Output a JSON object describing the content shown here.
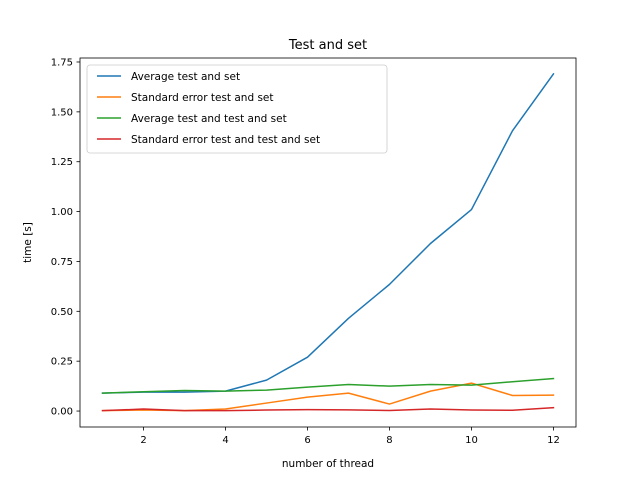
{
  "chart_data": {
    "type": "line",
    "title": "Test and set",
    "xlabel": "number of thread",
    "ylabel": "time [s]",
    "x": [
      1,
      2,
      3,
      4,
      5,
      6,
      7,
      8,
      9,
      10,
      11,
      12
    ],
    "xlim": [
      0.45,
      12.55
    ],
    "ylim": [
      -0.08,
      1.77
    ],
    "xticks": [
      2,
      4,
      6,
      8,
      10,
      12
    ],
    "yticks": [
      0.0,
      0.25,
      0.5,
      0.75,
      1.0,
      1.25,
      1.5,
      1.75
    ],
    "xtick_labels": [
      "2",
      "4",
      "6",
      "8",
      "10",
      "12"
    ],
    "ytick_labels": [
      "0.00",
      "0.25",
      "0.50",
      "0.75",
      "1.00",
      "1.25",
      "1.50",
      "1.75"
    ],
    "grid": false,
    "legend_position": "top-left",
    "series": [
      {
        "name": "Average test and set",
        "color": "#1f77b4",
        "values": [
          0.09,
          0.095,
          0.095,
          0.1,
          0.155,
          0.27,
          0.465,
          0.635,
          0.84,
          1.01,
          1.405,
          1.69
        ]
      },
      {
        "name": "Standard error test and set",
        "color": "#ff7f0e",
        "values": [
          0.002,
          0.005,
          0.002,
          0.01,
          0.04,
          0.07,
          0.09,
          0.035,
          0.1,
          0.14,
          0.078,
          0.08
        ]
      },
      {
        "name": "Average test and test and set",
        "color": "#2ca02c",
        "values": [
          0.09,
          0.097,
          0.103,
          0.1,
          0.105,
          0.12,
          0.133,
          0.125,
          0.133,
          0.13,
          0.147,
          0.163
        ]
      },
      {
        "name": "Standard error test and test and set",
        "color": "#d62728",
        "values": [
          0.002,
          0.01,
          0.002,
          0.002,
          0.005,
          0.007,
          0.006,
          0.003,
          0.01,
          0.005,
          0.004,
          0.017
        ]
      }
    ]
  }
}
